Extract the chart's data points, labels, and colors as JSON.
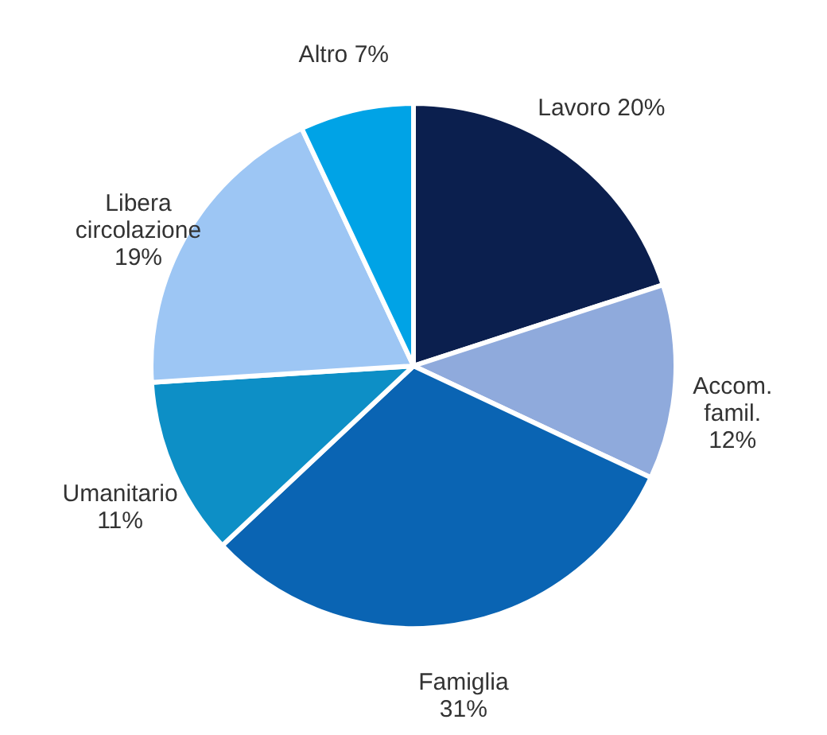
{
  "chart_data": {
    "type": "pie",
    "categories": [
      "Lavoro",
      "Accom. famil.",
      "Famiglia",
      "Umanitario",
      "Libera circolazione",
      "Altro"
    ],
    "values": [
      20,
      12,
      31,
      11,
      19,
      7
    ],
    "colors": [
      "#0b1f4e",
      "#8faadc",
      "#0a64b3",
      "#0d8fc6",
      "#9dc6f4",
      "#00a3e6"
    ],
    "value_labels": [
      "20%",
      "12%",
      "31%",
      "11%",
      "19%",
      "7%"
    ]
  }
}
